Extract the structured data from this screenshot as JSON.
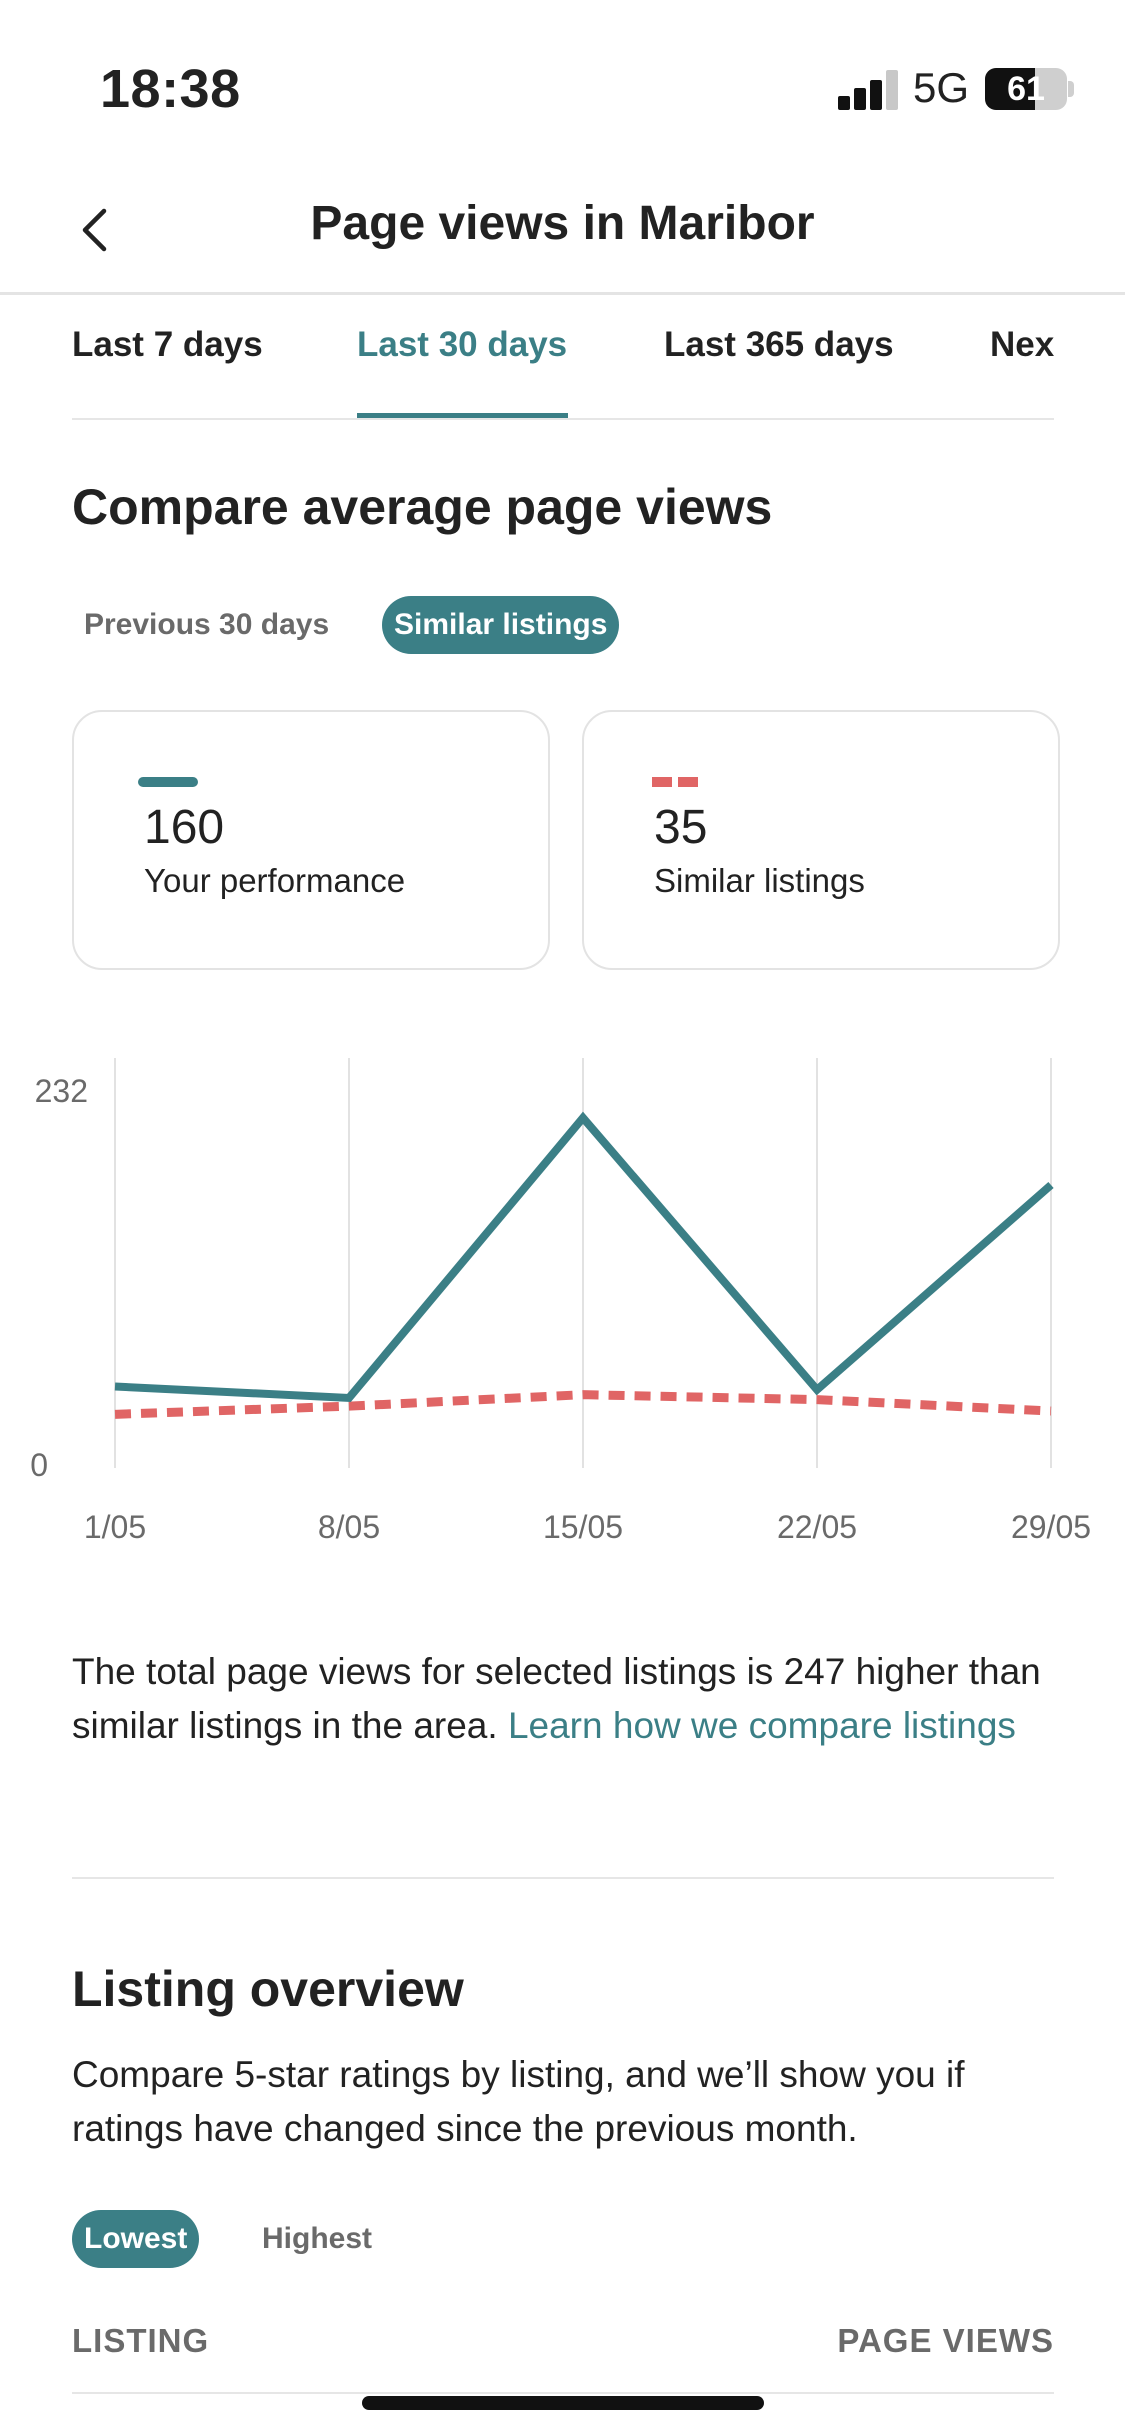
{
  "status_bar": {
    "time": "18:38",
    "network": "5G",
    "battery_percent": 61,
    "battery_text": "61",
    "signal_bars": 3
  },
  "header": {
    "title": "Page views in Maribor",
    "back_icon": "chevron-left-icon"
  },
  "tabs": [
    {
      "label": "Last 7 days",
      "active": false
    },
    {
      "label": "Last 30 days",
      "active": true
    },
    {
      "label": "Last 365 days",
      "active": false
    },
    {
      "label": "Nex",
      "active": false
    }
  ],
  "compare": {
    "title": "Compare average page views",
    "chips": [
      {
        "label": "Previous 30 days",
        "active": false
      },
      {
        "label": "Similar listings",
        "active": true
      }
    ],
    "cards": [
      {
        "value": "160",
        "label": "Your performance",
        "legend": "solid"
      },
      {
        "value": "35",
        "label": "Similar listings",
        "legend": "dashed"
      }
    ]
  },
  "chart_data": {
    "type": "line",
    "x": [
      "1/05",
      "8/05",
      "15/05",
      "22/05",
      "29/05"
    ],
    "y_ticks": [
      "232",
      "0"
    ],
    "ylim": [
      0,
      232
    ],
    "grid": true,
    "series": [
      {
        "name": "Your performance",
        "values": [
          40,
          33,
          204,
          38,
          163
        ],
        "color": "#3b7f86",
        "style": "solid"
      },
      {
        "name": "Similar listings",
        "values": [
          23,
          28,
          35,
          32,
          25
        ],
        "color": "#e06565",
        "style": "dashed"
      }
    ]
  },
  "summary": {
    "text": "The total page views for selected listings is 247 higher than similar listings in the area. ",
    "link": "Learn how we compare listings"
  },
  "overview": {
    "title": "Listing overview",
    "description": "Compare 5-star ratings by listing, and we’ll show you if ratings have changed since the previous month.",
    "chips": [
      {
        "label": "Lowest",
        "active": true
      },
      {
        "label": "Highest",
        "active": false
      }
    ],
    "columns": {
      "listing": "LISTING",
      "page_views": "PAGE VIEWS"
    }
  },
  "colors": {
    "accent": "#3b7f86",
    "comparison": "#e06565"
  }
}
